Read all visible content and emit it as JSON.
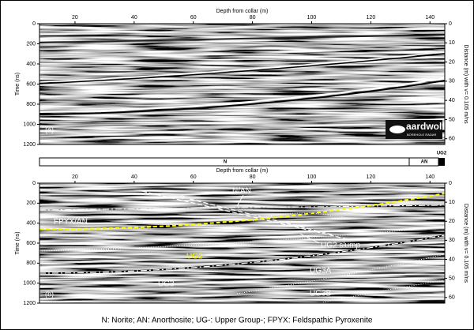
{
  "panels": [
    {
      "label": "(a)",
      "x_axis_label": "Depth from collar (m)",
      "y_axis_label": "Time (ns)",
      "y2_axis_label": "Distance (m) with v= 0.105 m/ns",
      "xlim": [
        8,
        145
      ],
      "xticks": [
        20,
        40,
        60,
        80,
        100,
        120,
        140
      ],
      "ylim": [
        0,
        1200
      ],
      "yticks": [
        0,
        200,
        400,
        600,
        800,
        1000,
        1200
      ],
      "y2lim": [
        0,
        63
      ],
      "y2ticks": [
        0,
        10,
        20,
        30,
        40,
        50,
        60
      ]
    },
    {
      "label": "(b)",
      "x_axis_label": "Depth from collar (m)",
      "y_axis_label": "Time (ns)",
      "y2_axis_label": "Distance (m) with v= 0.105 m/ns",
      "xlim": [
        8,
        145
      ],
      "xticks": [
        20,
        40,
        60,
        80,
        100,
        120,
        140
      ],
      "ylim": [
        0,
        1200
      ],
      "yticks": [
        0,
        200,
        400,
        600,
        800,
        1000,
        1200
      ],
      "y2lim": [
        0,
        63
      ],
      "y2ticks": [
        0,
        10,
        20,
        30,
        40,
        50,
        60
      ],
      "annotations": [
        "?",
        "N/AN",
        "UG2 slump",
        "UG2",
        "FPYX/AN",
        "UG3",
        "UG3A",
        "UG3B"
      ]
    }
  ],
  "logo": {
    "name": "aardwolf",
    "tagline": "BOREHOLE RADAR"
  },
  "strip": {
    "units": [
      "N",
      "AN",
      "UG2"
    ]
  },
  "caption": "N: Norite; AN: Anorthosite; UG-: Upper Group-; FPYX: Feldspathic Pyroxenite"
}
